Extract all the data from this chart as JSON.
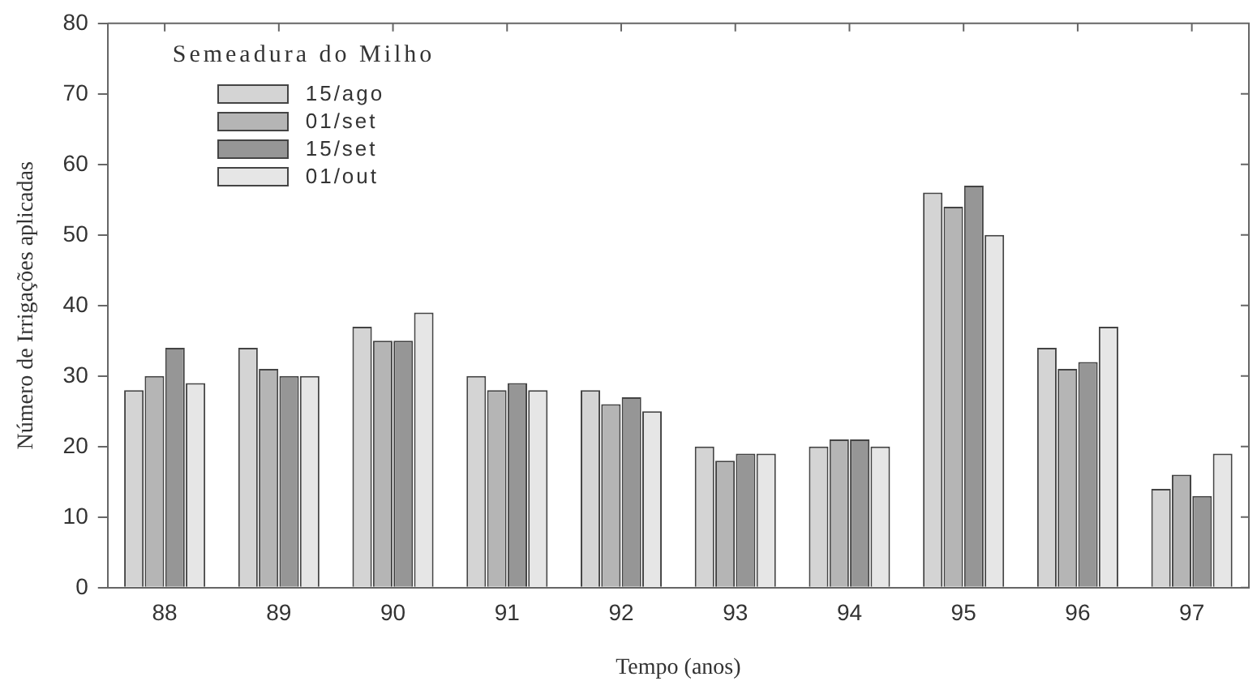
{
  "chart_data": {
    "type": "bar",
    "xlabel": "Tempo (anos)",
    "ylabel": "Número de Irrigações aplicadas",
    "legend_title": "Semeadura do Milho",
    "categories": [
      "88",
      "89",
      "90",
      "91",
      "92",
      "93",
      "94",
      "95",
      "96",
      "97"
    ],
    "series": [
      {
        "name": "15/ago",
        "color": "#d4d4d4",
        "values": [
          28,
          34,
          37,
          30,
          28,
          20,
          20,
          56,
          34,
          14
        ]
      },
      {
        "name": "01/set",
        "color": "#b5b5b5",
        "values": [
          30,
          31,
          35,
          28,
          26,
          18,
          21,
          54,
          31,
          16
        ]
      },
      {
        "name": "15/set",
        "color": "#969696",
        "values": [
          34,
          30,
          35,
          29,
          27,
          19,
          21,
          57,
          32,
          13
        ]
      },
      {
        "name": "01/out",
        "color": "#e6e6e6",
        "values": [
          29,
          30,
          39,
          28,
          25,
          19,
          20,
          50,
          37,
          19
        ]
      }
    ],
    "ylim": [
      0,
      80
    ],
    "yticks": [
      0,
      10,
      20,
      30,
      40,
      50,
      60,
      70,
      80
    ],
    "grid": false,
    "legend": "top left"
  }
}
